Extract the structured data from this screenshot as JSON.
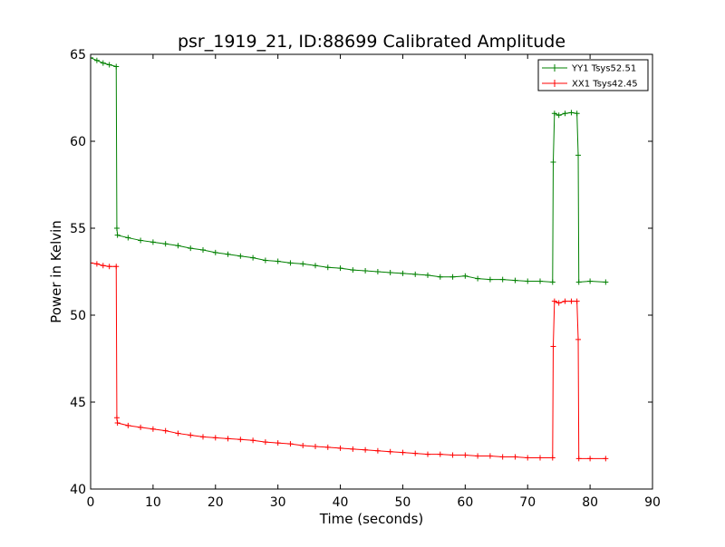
{
  "chart_data": {
    "type": "line",
    "title": "psr_1919_21, ID:88699 Calibrated Amplitude",
    "xlabel": "Time (seconds)",
    "ylabel": "Power in Kelvin",
    "xlim": [
      0,
      90
    ],
    "ylim": [
      40,
      65
    ],
    "xticks": [
      0,
      10,
      20,
      30,
      40,
      50,
      60,
      70,
      80,
      90
    ],
    "yticks": [
      40,
      45,
      50,
      55,
      60,
      65
    ],
    "grid": false,
    "legend_position": "top-right",
    "series": [
      {
        "name": "YY1 Tsys52.51",
        "color": "#008000",
        "marker": "+",
        "points": [
          [
            0,
            64.8
          ],
          [
            1,
            64.65
          ],
          [
            2,
            64.5
          ],
          [
            3,
            64.4
          ],
          [
            4.1,
            64.3
          ],
          [
            4.2,
            55.0
          ],
          [
            4.3,
            54.6
          ],
          [
            6,
            54.45
          ],
          [
            8,
            54.3
          ],
          [
            10,
            54.2
          ],
          [
            12,
            54.1
          ],
          [
            14,
            54.0
          ],
          [
            16,
            53.85
          ],
          [
            18,
            53.75
          ],
          [
            20,
            53.6
          ],
          [
            22,
            53.5
          ],
          [
            24,
            53.4
          ],
          [
            26,
            53.3
          ],
          [
            28,
            53.15
          ],
          [
            30,
            53.1
          ],
          [
            32,
            53.0
          ],
          [
            34,
            52.95
          ],
          [
            36,
            52.85
          ],
          [
            38,
            52.75
          ],
          [
            40,
            52.7
          ],
          [
            42,
            52.6
          ],
          [
            44,
            52.55
          ],
          [
            46,
            52.5
          ],
          [
            48,
            52.45
          ],
          [
            50,
            52.4
          ],
          [
            52,
            52.35
          ],
          [
            54,
            52.3
          ],
          [
            56,
            52.2
          ],
          [
            58,
            52.2
          ],
          [
            60,
            52.25
          ],
          [
            62,
            52.1
          ],
          [
            64,
            52.05
          ],
          [
            66,
            52.05
          ],
          [
            68,
            52.0
          ],
          [
            70,
            51.95
          ],
          [
            72,
            51.95
          ],
          [
            74,
            51.9
          ],
          [
            74.1,
            58.8
          ],
          [
            74.3,
            61.6
          ],
          [
            75,
            61.5
          ],
          [
            76,
            61.6
          ],
          [
            77,
            61.65
          ],
          [
            77.9,
            61.6
          ],
          [
            78.1,
            59.2
          ],
          [
            78.2,
            51.9
          ],
          [
            80,
            51.95
          ],
          [
            82.5,
            51.9
          ]
        ]
      },
      {
        "name": "XX1 Tsys42.45",
        "color": "#ff0000",
        "marker": "+",
        "points": [
          [
            0,
            53.0
          ],
          [
            1,
            52.95
          ],
          [
            2,
            52.85
          ],
          [
            3,
            52.8
          ],
          [
            4.1,
            52.8
          ],
          [
            4.2,
            44.1
          ],
          [
            4.3,
            43.8
          ],
          [
            6,
            43.65
          ],
          [
            8,
            43.55
          ],
          [
            10,
            43.45
          ],
          [
            12,
            43.35
          ],
          [
            14,
            43.2
          ],
          [
            16,
            43.1
          ],
          [
            18,
            43.0
          ],
          [
            20,
            42.95
          ],
          [
            22,
            42.9
          ],
          [
            24,
            42.85
          ],
          [
            26,
            42.8
          ],
          [
            28,
            42.7
          ],
          [
            30,
            42.65
          ],
          [
            32,
            42.6
          ],
          [
            34,
            42.5
          ],
          [
            36,
            42.45
          ],
          [
            38,
            42.4
          ],
          [
            40,
            42.35
          ],
          [
            42,
            42.3
          ],
          [
            44,
            42.25
          ],
          [
            46,
            42.2
          ],
          [
            48,
            42.15
          ],
          [
            50,
            42.1
          ],
          [
            52,
            42.05
          ],
          [
            54,
            42.0
          ],
          [
            56,
            42.0
          ],
          [
            58,
            41.95
          ],
          [
            60,
            41.95
          ],
          [
            62,
            41.9
          ],
          [
            64,
            41.9
          ],
          [
            66,
            41.85
          ],
          [
            68,
            41.85
          ],
          [
            70,
            41.8
          ],
          [
            72,
            41.8
          ],
          [
            74,
            41.8
          ],
          [
            74.1,
            48.2
          ],
          [
            74.3,
            50.8
          ],
          [
            75,
            50.7
          ],
          [
            76,
            50.8
          ],
          [
            77,
            50.8
          ],
          [
            77.9,
            50.8
          ],
          [
            78.1,
            48.6
          ],
          [
            78.2,
            41.75
          ],
          [
            80,
            41.75
          ],
          [
            82.5,
            41.75
          ]
        ]
      }
    ]
  }
}
